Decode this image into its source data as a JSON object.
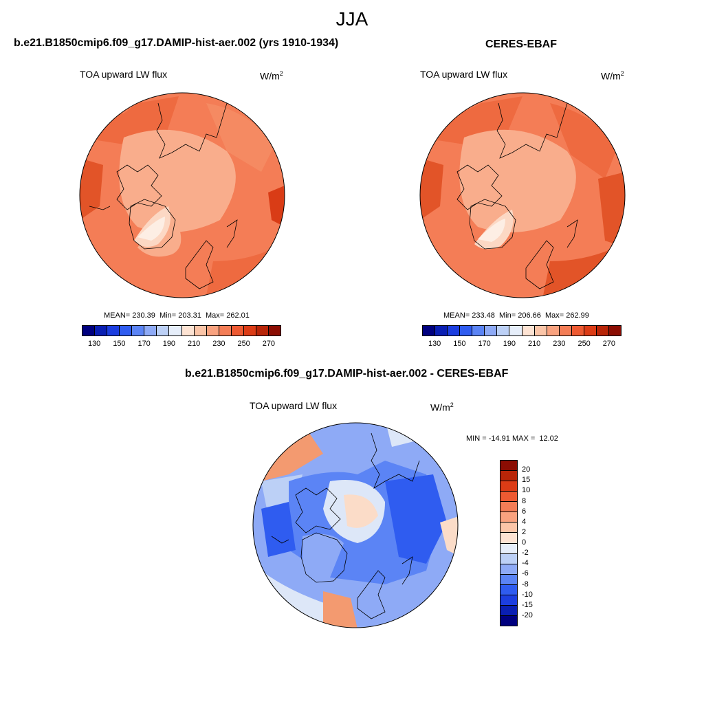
{
  "season": "JJA",
  "panels": {
    "model": {
      "title": "b.e21.B1850cmip6.f09_g17.DAMIP-hist-aer.002 (yrs 1910-1934)",
      "variable": "TOA upward LW flux",
      "units": "W/m",
      "units_sup": "2",
      "stats": "MEAN= 230.39  Min= 203.31  Max= 262.01"
    },
    "obs": {
      "title": "CERES-EBAF",
      "variable": "TOA upward LW flux",
      "units": "W/m",
      "units_sup": "2",
      "stats": "MEAN= 233.48  Min= 206.66  Max= 262.99"
    },
    "diff": {
      "title": "b.e21.B1850cmip6.f09_g17.DAMIP-hist-aer.002 - CERES-EBAF",
      "variable": "TOA upward LW flux",
      "units": "W/m",
      "units_sup": "2",
      "stats": "MIN = -14.91 MAX =  12.02"
    }
  },
  "colorbar_abs": {
    "labels": [
      "130",
      "150",
      "170",
      "190",
      "210",
      "230",
      "250",
      "270"
    ],
    "colors": [
      "#00007f",
      "#0a1fb3",
      "#1c3ee0",
      "#2f5cf0",
      "#5b84f5",
      "#8eaaf6",
      "#bcd0f6",
      "#e6eefa",
      "#fde3d3",
      "#fbc5a8",
      "#f9a27f",
      "#f47d56",
      "#ee5a32",
      "#dc3c16",
      "#b82508",
      "#8b0d03"
    ]
  },
  "colorbar_diff": {
    "labels": [
      "20",
      "15",
      "10",
      "8",
      "6",
      "4",
      "2",
      "0",
      "-2",
      "-4",
      "-6",
      "-8",
      "-10",
      "-15",
      "-20"
    ],
    "colors": [
      "#8b0d03",
      "#b82508",
      "#dc3c16",
      "#ee5a32",
      "#f47d56",
      "#f9a27f",
      "#fbc5a8",
      "#fde3d3",
      "#e6eefa",
      "#bcd0f6",
      "#8eaaf6",
      "#5b84f5",
      "#2f5cf0",
      "#1c3ee0",
      "#0a1fb3",
      "#00007f"
    ]
  },
  "map_colors": {
    "deep": "#ee6a40",
    "mid": "#f58a62",
    "light": "#f9ad8c",
    "pale": "#fcd8c4",
    "dark": "#d93c16",
    "diff_blue": "#4f7de6",
    "diff_lightblue": "#a9c2f2",
    "diff_pale": "#dde7f8",
    "diff_peach": "#fbdcc8",
    "diff_orange": "#f39a70"
  }
}
